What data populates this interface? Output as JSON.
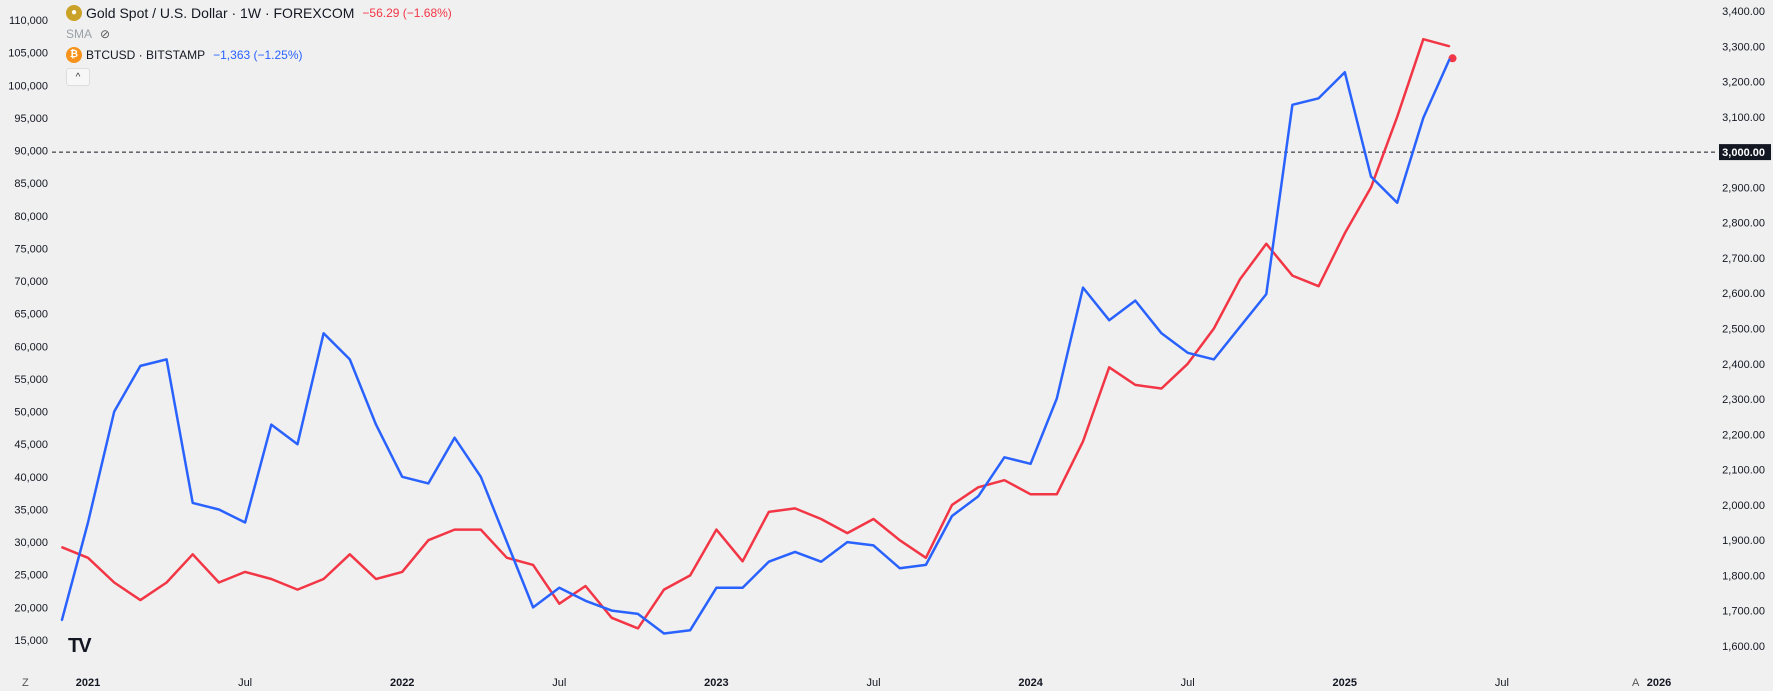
{
  "legend": {
    "gold_title": "Gold Spot / U.S. Dollar · 1W · FOREXCOM",
    "gold_change": "−56.29 (−1.68%)",
    "sma_label": "SMA",
    "btc_title": "BTCUSD · BITSTAMP",
    "btc_change": "−1,363 (−1.25%)",
    "collapse_glyph": "^"
  },
  "corner": {
    "left": "Z",
    "right": "A"
  },
  "logo_text": "TV",
  "colors": {
    "gold_line": "#f23645",
    "btc_line": "#2962ff",
    "background": "#f0f0f0"
  },
  "chart_data": {
    "type": "line",
    "left_axis": {
      "ticks": [
        15000,
        20000,
        25000,
        30000,
        35000,
        40000,
        45000,
        50000,
        55000,
        60000,
        65000,
        70000,
        75000,
        80000,
        85000,
        90000,
        95000,
        100000,
        105000,
        110000
      ],
      "labels": [
        "15,000",
        "20,000",
        "25,000",
        "30,000",
        "35,000",
        "40,000",
        "45,000",
        "50,000",
        "55,000",
        "60,000",
        "65,000",
        "70,000",
        "75,000",
        "80,000",
        "85,000",
        "90,000",
        "95,000",
        "100,000",
        "105,000",
        "110,000"
      ]
    },
    "right_axis": {
      "ticks": [
        1600,
        1700,
        1800,
        1900,
        2000,
        2100,
        2200,
        2300,
        2400,
        2500,
        2600,
        2700,
        2800,
        2900,
        3000,
        3100,
        3200,
        3300,
        3400
      ],
      "labels": [
        "1,600.00",
        "1,700.00",
        "1,800.00",
        "1,900.00",
        "2,000.00",
        "2,100.00",
        "2,200.00",
        "2,300.00",
        "2,400.00",
        "2,500.00",
        "2,600.00",
        "2,700.00",
        "2,800.00",
        "2,900.00",
        "3,000.00",
        "3,100.00",
        "3,200.00",
        "3,300.00",
        "3,400.00"
      ]
    },
    "x_axis": {
      "labels": [
        "2021",
        "Jul",
        "2022",
        "Jul",
        "2023",
        "Jul",
        "2024",
        "Jul",
        "2025",
        "Jul",
        "2026"
      ],
      "dates": [
        "2021-01",
        "2021-07",
        "2022-01",
        "2022-07",
        "2023-01",
        "2023-07",
        "2024-01",
        "2024-07",
        "2025-01",
        "2025-07",
        "2026-01"
      ]
    },
    "reference_line": {
      "axis": "right",
      "value": 3000,
      "label": "3,000.00",
      "style": "dashed"
    },
    "series": [
      {
        "name": "Gold Spot / U.S. Dollar",
        "axis": "right",
        "color": "#f23645",
        "x": [
          "2020-12",
          "2021-01",
          "2021-02",
          "2021-03",
          "2021-04",
          "2021-05",
          "2021-06",
          "2021-07",
          "2021-08",
          "2021-09",
          "2021-10",
          "2021-11",
          "2021-12",
          "2022-01",
          "2022-02",
          "2022-03",
          "2022-04",
          "2022-05",
          "2022-06",
          "2022-07",
          "2022-08",
          "2022-09",
          "2022-10",
          "2022-11",
          "2022-12",
          "2023-01",
          "2023-02",
          "2023-03",
          "2023-04",
          "2023-05",
          "2023-06",
          "2023-07",
          "2023-08",
          "2023-09",
          "2023-10",
          "2023-11",
          "2023-12",
          "2024-01",
          "2024-02",
          "2024-03",
          "2024-04",
          "2024-05",
          "2024-06",
          "2024-07",
          "2024-08",
          "2024-09",
          "2024-10",
          "2024-11",
          "2024-12",
          "2025-01",
          "2025-02",
          "2025-03",
          "2025-04",
          "2025-05"
        ],
        "y": [
          1880,
          1850,
          1780,
          1730,
          1780,
          1860,
          1780,
          1810,
          1790,
          1760,
          1790,
          1860,
          1790,
          1810,
          1900,
          1930,
          1930,
          1850,
          1830,
          1720,
          1770,
          1680,
          1650,
          1760,
          1800,
          1930,
          1840,
          1980,
          1990,
          1960,
          1920,
          1960,
          1900,
          1850,
          2000,
          2050,
          2070,
          2030,
          2030,
          2180,
          2390,
          2340,
          2330,
          2400,
          2500,
          2640,
          2740,
          2650,
          2620,
          2770,
          2900,
          3100,
          3320,
          3300
        ]
      },
      {
        "name": "BTCUSD",
        "axis": "left",
        "color": "#2962ff",
        "x": [
          "2020-12",
          "2021-01",
          "2021-02",
          "2021-03",
          "2021-04",
          "2021-05",
          "2021-06",
          "2021-07",
          "2021-08",
          "2021-09",
          "2021-10",
          "2021-11",
          "2021-12",
          "2022-01",
          "2022-02",
          "2022-03",
          "2022-04",
          "2022-05",
          "2022-06",
          "2022-07",
          "2022-08",
          "2022-09",
          "2022-10",
          "2022-11",
          "2022-12",
          "2023-01",
          "2023-02",
          "2023-03",
          "2023-04",
          "2023-05",
          "2023-06",
          "2023-07",
          "2023-08",
          "2023-09",
          "2023-10",
          "2023-11",
          "2023-12",
          "2024-01",
          "2024-02",
          "2024-03",
          "2024-04",
          "2024-05",
          "2024-06",
          "2024-07",
          "2024-08",
          "2024-09",
          "2024-10",
          "2024-11",
          "2024-12",
          "2025-01",
          "2025-02",
          "2025-03",
          "2025-04",
          "2025-05"
        ],
        "y": [
          18000,
          33000,
          50000,
          57000,
          58000,
          36000,
          35000,
          33000,
          48000,
          45000,
          62000,
          58000,
          48000,
          40000,
          39000,
          46000,
          40000,
          30000,
          20000,
          23000,
          21000,
          19500,
          19000,
          16000,
          16500,
          23000,
          23000,
          27000,
          28500,
          27000,
          30000,
          29500,
          26000,
          26500,
          34000,
          37000,
          43000,
          42000,
          52000,
          69000,
          64000,
          67000,
          62000,
          59000,
          58000,
          63000,
          68000,
          97000,
          98000,
          102000,
          86000,
          82000,
          95000,
          104000
        ]
      }
    ]
  }
}
